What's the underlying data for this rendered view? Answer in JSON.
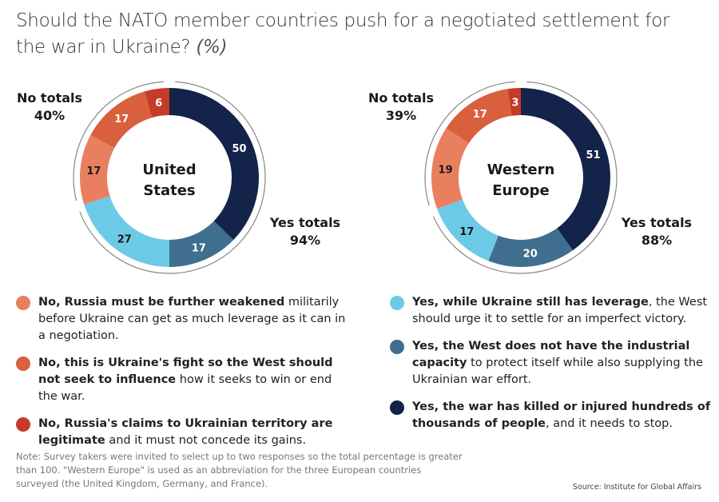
{
  "title": {
    "main": "Should the NATO member countries push for a negotiated settlement for the war in Ukraine?",
    "unit": "(%)"
  },
  "colors": {
    "no_weakened": "#e8805f",
    "no_ukraines_fight": "#d9603d",
    "no_legitimate": "#c63a28",
    "yes_leverage": "#6dcae6",
    "yes_capacity": "#3f6e8f",
    "yes_killed": "#14234a",
    "ring": "#888888"
  },
  "chart_data": [
    {
      "type": "pie",
      "subtype": "donut",
      "title": "United States",
      "center_label": [
        "United",
        "States"
      ],
      "categories": [
        "Yes, the war has killed or injured hundreds of thousands of people",
        "Yes, the West does not have the industrial capacity",
        "Yes, while Ukraine still has leverage",
        "No, Russia must be further weakened",
        "No, this is Ukraine's fight",
        "No, Russia's claims are legitimate"
      ],
      "keys": [
        "yes_killed",
        "yes_capacity",
        "yes_leverage",
        "no_weakened",
        "no_ukraines_fight",
        "no_legitimate"
      ],
      "values": [
        50,
        17,
        27,
        17,
        17,
        6
      ],
      "label_colors": [
        "#ffffff",
        "#ffffff",
        "#1a1a1a",
        "#1a1a1a",
        "#ffffff",
        "#ffffff"
      ],
      "totals": {
        "no": {
          "label": "No totals",
          "value": "40%"
        },
        "yes": {
          "label": "Yes totals",
          "value": "94%"
        }
      }
    },
    {
      "type": "pie",
      "subtype": "donut",
      "title": "Western Europe",
      "center_label": [
        "Western",
        "Europe"
      ],
      "categories": [
        "Yes, the war has killed or injured hundreds of thousands of people",
        "Yes, the West does not have the industrial capacity",
        "Yes, while Ukraine still has leverage",
        "No, Russia must be further weakened",
        "No, this is Ukraine's fight",
        "No, Russia's claims are legitimate"
      ],
      "keys": [
        "yes_killed",
        "yes_capacity",
        "yes_leverage",
        "no_weakened",
        "no_ukraines_fight",
        "no_legitimate"
      ],
      "values": [
        51,
        20,
        17,
        19,
        17,
        3
      ],
      "label_colors": [
        "#ffffff",
        "#ffffff",
        "#1a1a1a",
        "#1a1a1a",
        "#ffffff",
        "#ffffff"
      ],
      "totals": {
        "no": {
          "label": "No totals",
          "value": "39%"
        },
        "yes": {
          "label": "Yes totals",
          "value": "88%"
        }
      }
    }
  ],
  "legend": {
    "left": [
      {
        "key": "no_weakened",
        "bold": "No, Russia must be further weakened",
        "rest": " militarily before Ukraine can get as much leverage as it can in a negotiation."
      },
      {
        "key": "no_ukraines_fight",
        "bold": "No, this is Ukraine's fight so the West should not seek to influence",
        "rest": " how it seeks to win or end the war."
      },
      {
        "key": "no_legitimate",
        "bold": "No, Russia's claims to Ukrainian territory are legitimate",
        "rest": " and it must not concede its gains."
      }
    ],
    "right": [
      {
        "key": "yes_leverage",
        "bold": "Yes, while Ukraine still has leverage",
        "rest": ", the West should urge it to settle for an imperfect victory."
      },
      {
        "key": "yes_capacity",
        "bold": "Yes, the West does not have the industrial capacity",
        "rest": " to protect itself while also supplying the Ukrainian war effort."
      },
      {
        "key": "yes_killed",
        "bold": "Yes, the war has killed or injured hundreds of thousands of people",
        "rest": ", and it needs to stop."
      }
    ]
  },
  "note": "Note: Survey takers were invited to select up to two responses so the total percentage is greater than 100. \"Western Europe\" is used as an abbreviation for the three European countries surveyed (the United Kingdom, Germany, and France).",
  "source": "Source: Institute for Global Affairs"
}
